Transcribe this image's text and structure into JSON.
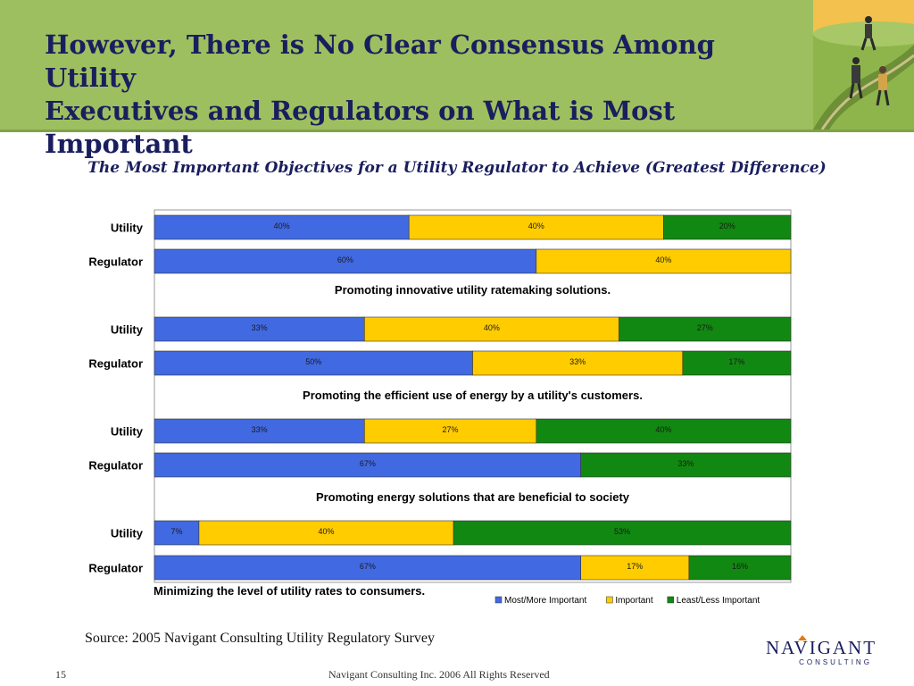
{
  "slide": {
    "title_line1": "However, There is No Clear Consensus Among Utility",
    "title_line2": "Executives and Regulators on What is Most Important",
    "source": "Source: 2005 Navigant Consulting Utility Regulatory Survey",
    "page_number": "15",
    "copyright": "Navigant Consulting Inc. 2006 All Rights Reserved",
    "logo_text": "NAVIGANT",
    "logo_subtext": "CONSULTING"
  },
  "chart_data": {
    "type": "bar",
    "orientation": "horizontal",
    "stacked": true,
    "percent": true,
    "title": "The Most Important Objectives for a Utility Regulator to Achieve (Greatest Difference)",
    "categories": [
      "Utility",
      "Regulator",
      "Utility",
      "Regulator",
      "Utility",
      "Regulator",
      "Utility",
      "Regulator"
    ],
    "group_labels": [
      "Promoting innovative utility ratemaking solutions.",
      "Promoting the efficient use of energy by a utility's customers.",
      "Promoting energy solutions that are beneficial to society",
      "Minimizing the level of utility rates to consumers."
    ],
    "groups": [
      {
        "label_index": 0,
        "rows": [
          0,
          1
        ]
      },
      {
        "label_index": 1,
        "rows": [
          2,
          3
        ]
      },
      {
        "label_index": 2,
        "rows": [
          4,
          5
        ]
      },
      {
        "label_index": 3,
        "rows": [
          6,
          7
        ]
      }
    ],
    "series": [
      {
        "name": "Most/More Important",
        "color": "#4169e1",
        "values": [
          40,
          60,
          33,
          50,
          33,
          67,
          7,
          67
        ]
      },
      {
        "name": "Important",
        "color": "#ffcc00",
        "values": [
          40,
          40,
          40,
          33,
          27,
          0,
          40,
          17
        ]
      },
      {
        "name": "Least/Less Important",
        "color": "#118811",
        "values": [
          20,
          0,
          27,
          17,
          40,
          33,
          53,
          16
        ]
      }
    ],
    "xlim": [
      0,
      100
    ],
    "legend_position": "bottom-right",
    "grid": false
  }
}
